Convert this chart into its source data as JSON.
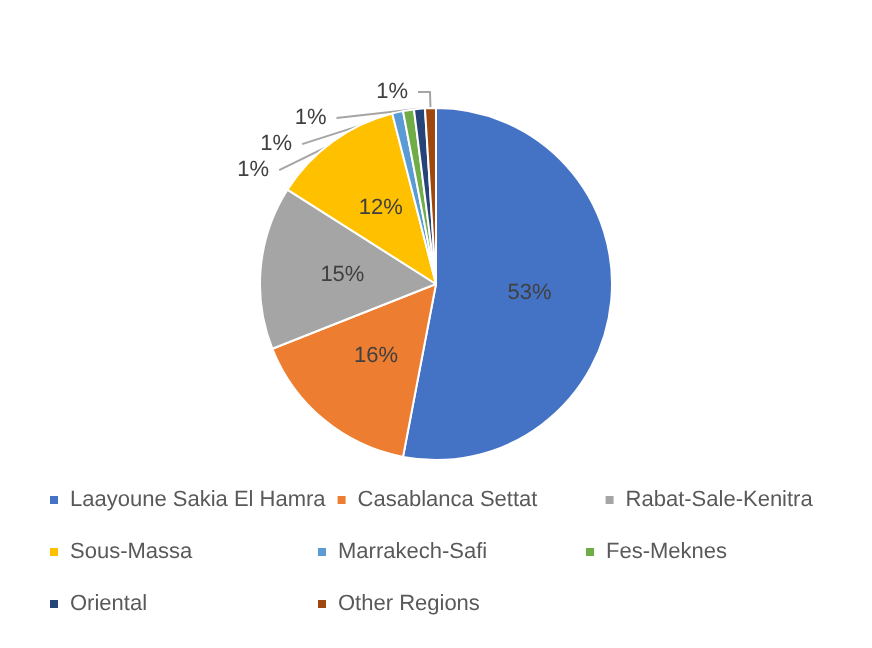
{
  "chart_data": {
    "type": "pie",
    "categories": [
      "Laayoune Sakia El Hamra",
      "Casablanca Settat",
      "Rabat-Sale-Kenitra",
      "Sous-Massa",
      "Marrakech-Safi",
      "Fes-Meknes",
      "Oriental",
      "Other Regions"
    ],
    "values": [
      53,
      16,
      15,
      12,
      1,
      1,
      1,
      1
    ],
    "colors": [
      "#4472c4",
      "#ed7d31",
      "#a5a5a5",
      "#ffc000",
      "#5b9bd5",
      "#70ad47",
      "#264478",
      "#9e480e"
    ],
    "value_labels": [
      "53%",
      "16%",
      "15%",
      "12%",
      "1%",
      "1%",
      "1%",
      "1%"
    ],
    "legend": "bottom"
  }
}
